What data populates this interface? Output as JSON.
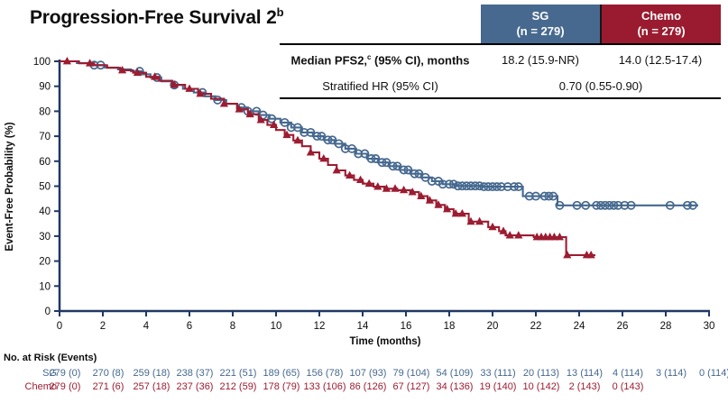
{
  "title": {
    "text": "Progression-Free Survival 2",
    "superscript": "b"
  },
  "summary_table": {
    "columns": [
      {
        "label": "SG",
        "sub": "(n = 279)",
        "color": "#47698f"
      },
      {
        "label": "Chemo",
        "sub": "(n = 279)",
        "color": "#9a1b2f"
      }
    ],
    "rows": [
      {
        "label_prefix": "Median PFS2,",
        "label_sup": "c",
        "label_suffix": " (95% CI), months",
        "values": [
          "18.2 (15.9-NR)",
          "14.0 (12.5-17.4)"
        ]
      },
      {
        "label": "Stratified HR (95% CI)",
        "value": "0.70 (0.55-0.90)"
      }
    ]
  },
  "chart_data": {
    "type": "line",
    "subtype": "kaplan-meier-step",
    "title": "Progression-Free Survival 2",
    "xlabel": "Time (months)",
    "ylabel": "Event-Free Probability (%)",
    "xlim": [
      0,
      30
    ],
    "ylim": [
      0,
      100
    ],
    "xticks": [
      0,
      2,
      4,
      6,
      8,
      10,
      12,
      14,
      16,
      18,
      20,
      22,
      24,
      26,
      28,
      30
    ],
    "yticks": [
      0,
      10,
      20,
      30,
      40,
      50,
      60,
      70,
      80,
      90,
      100
    ],
    "grid": false,
    "legend": "none",
    "axis_color": "#1f3864",
    "series": [
      {
        "name": "SG",
        "color": "#45688f",
        "marker": "open-circle",
        "steps": [
          [
            0,
            100
          ],
          [
            0.8,
            99.3
          ],
          [
            1.5,
            98.5
          ],
          [
            2.1,
            97.5
          ],
          [
            2.7,
            96.8
          ],
          [
            3.3,
            96
          ],
          [
            3.8,
            94.8
          ],
          [
            4.2,
            93.5
          ],
          [
            4.7,
            92
          ],
          [
            5.2,
            90.5
          ],
          [
            5.7,
            89
          ],
          [
            6.2,
            87.5
          ],
          [
            6.7,
            86
          ],
          [
            7.2,
            84.5
          ],
          [
            7.7,
            83
          ],
          [
            8.2,
            81.5
          ],
          [
            8.7,
            80
          ],
          [
            9.2,
            78.5
          ],
          [
            9.7,
            77
          ],
          [
            10.2,
            75.5
          ],
          [
            10.7,
            73.5
          ],
          [
            11.2,
            71.5
          ],
          [
            11.7,
            70
          ],
          [
            12.2,
            68.5
          ],
          [
            12.7,
            67
          ],
          [
            13.2,
            65
          ],
          [
            13.7,
            63
          ],
          [
            14.2,
            61
          ],
          [
            14.7,
            59.5
          ],
          [
            15.2,
            58
          ],
          [
            15.7,
            56.5
          ],
          [
            16.2,
            55
          ],
          [
            16.7,
            53.5
          ],
          [
            17.2,
            52
          ],
          [
            17.7,
            50.8
          ],
          [
            18.3,
            50.1
          ],
          [
            19.5,
            49.8
          ],
          [
            21.4,
            46
          ],
          [
            23,
            42.3
          ]
        ],
        "end_time": 29.5,
        "censor_times": [
          1.6,
          1.9,
          3.7,
          4.5,
          5.3,
          6.6,
          7.3,
          8.4,
          8.7,
          9.1,
          9.4,
          9.8,
          10.4,
          10.7,
          11.0,
          11.3,
          11.6,
          11.9,
          12.1,
          12.4,
          12.6,
          12.9,
          13.2,
          13.5,
          13.8,
          14.1,
          14.4,
          14.6,
          14.9,
          15.1,
          15.4,
          15.6,
          15.9,
          16.1,
          16.4,
          16.6,
          16.9,
          17.2,
          17.5,
          17.7,
          18.0,
          18.2,
          18.4,
          18.6,
          18.8,
          19.0,
          19.2,
          19.4,
          19.6,
          19.8,
          20.0,
          20.2,
          20.4,
          20.7,
          21.0,
          21.2,
          21.7,
          22.0,
          22.4,
          22.6,
          22.8,
          23.1,
          23.9,
          24.3,
          24.8,
          25.0,
          25.2,
          25.4,
          25.6,
          25.8,
          26.1,
          26.4,
          28.2,
          29.0,
          29.25
        ]
      },
      {
        "name": "Chemo",
        "color": "#9c1c31",
        "marker": "filled-triangle",
        "steps": [
          [
            0,
            100
          ],
          [
            0.9,
            99.2
          ],
          [
            1.6,
            98.4
          ],
          [
            2.2,
            97.4
          ],
          [
            2.8,
            96.4
          ],
          [
            3.4,
            95.4
          ],
          [
            4.0,
            93.8
          ],
          [
            4.6,
            92.2
          ],
          [
            5.2,
            90.6
          ],
          [
            5.8,
            89
          ],
          [
            6.4,
            87
          ],
          [
            7.0,
            85
          ],
          [
            7.6,
            83
          ],
          [
            8.2,
            80.8
          ],
          [
            8.7,
            78.8
          ],
          [
            9.2,
            76.5
          ],
          [
            9.6,
            74.5
          ],
          [
            10.0,
            72.5
          ],
          [
            10.4,
            70.5
          ],
          [
            10.8,
            68.3
          ],
          [
            11.2,
            66
          ],
          [
            11.6,
            63.5
          ],
          [
            12.0,
            61
          ],
          [
            12.4,
            58.5
          ],
          [
            12.8,
            56.3
          ],
          [
            13.2,
            54.3
          ],
          [
            13.6,
            52.5
          ],
          [
            14.0,
            51
          ],
          [
            14.5,
            49.8
          ],
          [
            15.0,
            49
          ],
          [
            15.6,
            48.4
          ],
          [
            16.2,
            47.6
          ],
          [
            16.6,
            46
          ],
          [
            17.0,
            44.3
          ],
          [
            17.4,
            42.5
          ],
          [
            17.8,
            40.8
          ],
          [
            18.2,
            39
          ],
          [
            18.9,
            35.8
          ],
          [
            19.8,
            33.6
          ],
          [
            20.3,
            32
          ],
          [
            20.6,
            30.3
          ],
          [
            21.9,
            29.6
          ],
          [
            23.4,
            22.4
          ]
        ],
        "end_time": 24.75,
        "censor_times": [
          0.35,
          1.4,
          2.9,
          3.6,
          4.4,
          5.3,
          6.0,
          6.5,
          7.6,
          8.3,
          8.8,
          9.3,
          9.9,
          10.5,
          11.0,
          11.6,
          12.2,
          12.8,
          13.4,
          13.9,
          14.3,
          14.7,
          15.1,
          15.5,
          15.9,
          16.3,
          16.7,
          17.1,
          17.5,
          17.9,
          18.3,
          18.6,
          19.0,
          19.4,
          20.0,
          20.5,
          20.8,
          21.2,
          22.05,
          22.25,
          22.45,
          22.65,
          22.85,
          23.1,
          23.45,
          24.35,
          24.55
        ]
      }
    ]
  },
  "risk_table": {
    "title": "No. at Risk (Events)",
    "times": [
      0,
      2,
      4,
      6,
      8,
      10,
      12,
      14,
      16,
      18,
      20,
      22,
      24,
      26,
      28,
      30
    ],
    "rows": [
      {
        "label": "SG",
        "color": "#45688f",
        "values": [
          "279 (0)",
          "270 (8)",
          "259 (18)",
          "238 (37)",
          "221 (51)",
          "189 (65)",
          "156 (78)",
          "107 (93)",
          "79 (104)",
          "54 (109)",
          "33 (111)",
          "20 (113)",
          "13 (114)",
          "4 (114)",
          "3 (114)",
          "0 (114)"
        ]
      },
      {
        "label": "Chemo",
        "color": "#9c1c31",
        "values": [
          "279 (0)",
          "271 (6)",
          "257 (18)",
          "237 (36)",
          "212 (59)",
          "178 (79)",
          "133 (106)",
          "86 (126)",
          "67 (127)",
          "34 (136)",
          "19 (140)",
          "10 (142)",
          "2 (143)",
          "0 (143)"
        ]
      }
    ]
  }
}
